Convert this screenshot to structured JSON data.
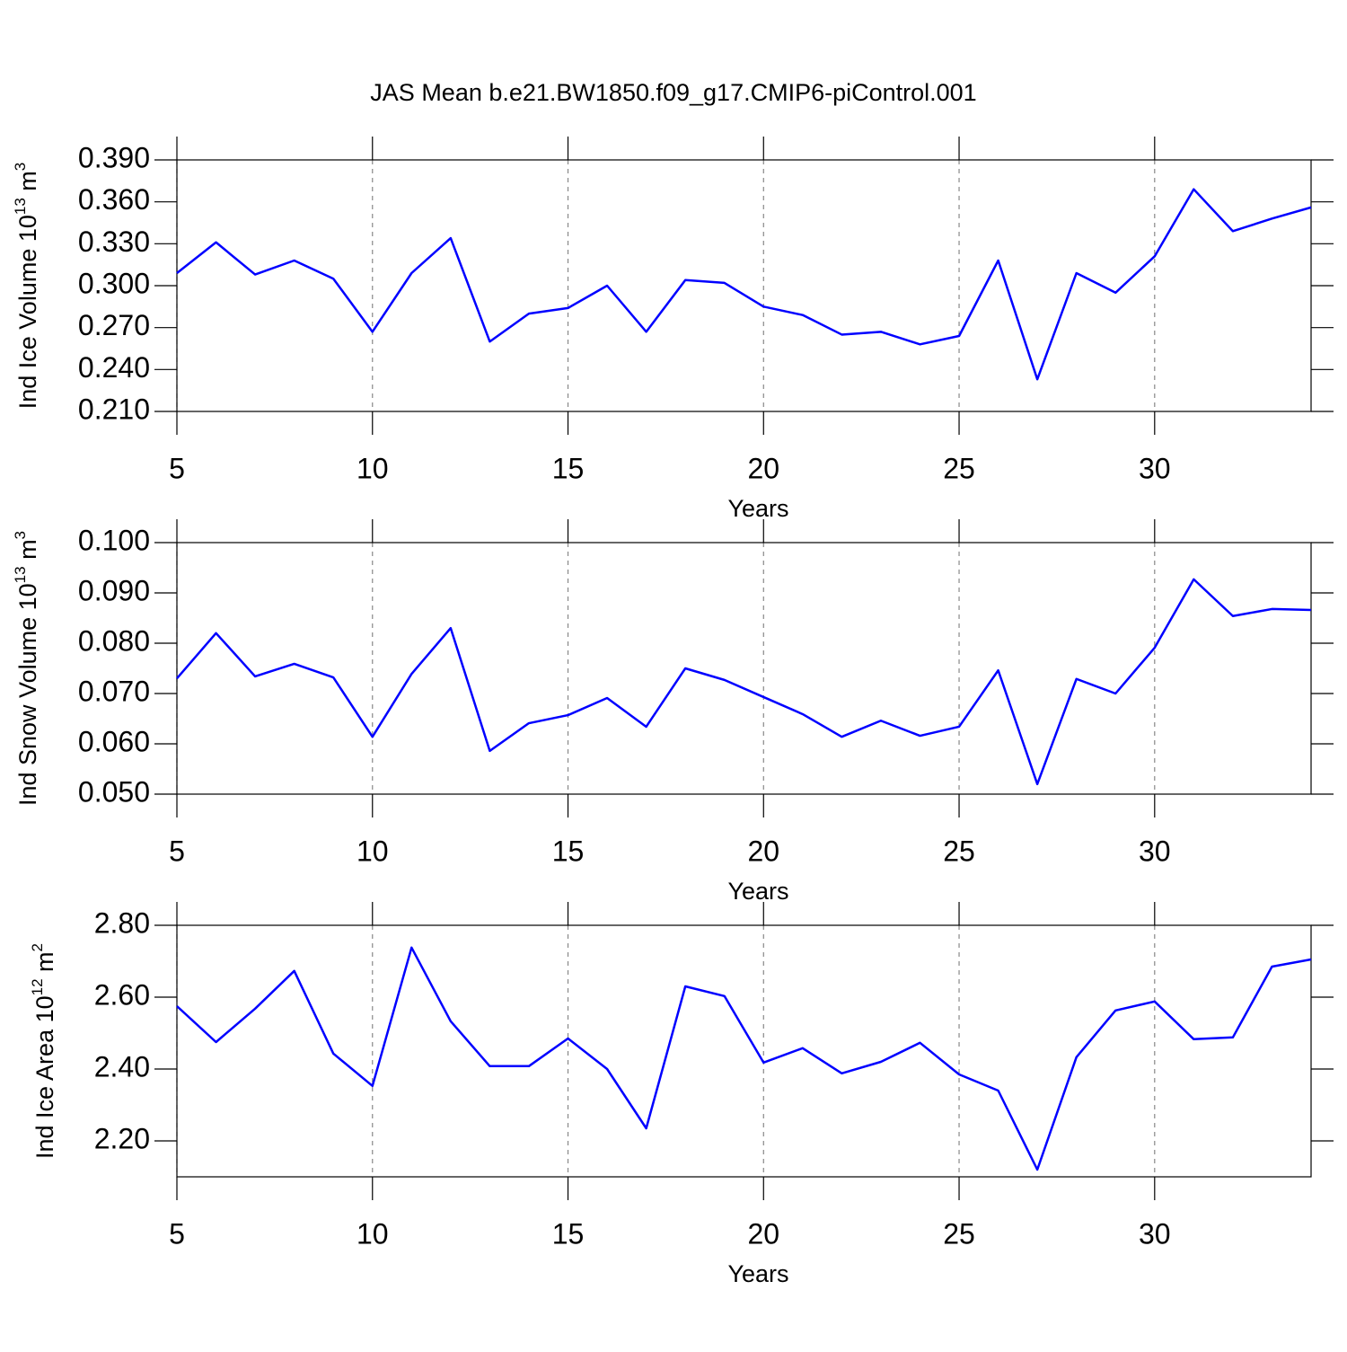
{
  "chart_data": [
    {
      "type": "line",
      "title": "JAS Mean b.e21.BW1850.f09_g17.CMIP6-piControl.001",
      "xlabel": "Years",
      "ylabel": [
        {
          "text": "Ind Ice Volume 10",
          "superscript": false
        },
        {
          "text": "13",
          "superscript": true
        },
        {
          "text": " m",
          "superscript": false
        },
        {
          "text": "3",
          "superscript": true
        }
      ],
      "x": [
        5,
        6,
        7,
        8,
        9,
        10,
        11,
        12,
        13,
        14,
        15,
        16,
        17,
        18,
        19,
        20,
        21,
        22,
        23,
        24,
        25,
        26,
        27,
        28,
        29,
        30,
        31,
        32,
        33,
        34
      ],
      "series": [
        {
          "color": "#0000ff",
          "values": [
            0.309,
            0.331,
            0.308,
            0.318,
            0.305,
            0.267,
            0.309,
            0.334,
            0.26,
            0.28,
            0.284,
            0.3,
            0.267,
            0.304,
            0.302,
            0.285,
            0.279,
            0.265,
            0.267,
            0.258,
            0.264,
            0.318,
            0.233,
            0.309,
            0.295,
            0.321,
            0.369,
            0.339,
            0.348,
            0.356
          ]
        }
      ],
      "xlim": [
        5,
        34
      ],
      "xticks": [
        5,
        10,
        15,
        20,
        25,
        30
      ],
      "ylim": [
        0.21,
        0.39
      ],
      "yticks": [
        {
          "value": 0.21,
          "label": "0.210"
        },
        {
          "value": 0.24,
          "label": "0.240"
        },
        {
          "value": 0.27,
          "label": "0.270"
        },
        {
          "value": 0.3,
          "label": "0.300"
        },
        {
          "value": 0.33,
          "label": "0.330"
        },
        {
          "value": 0.36,
          "label": "0.360"
        },
        {
          "value": 0.39,
          "label": "0.390"
        }
      ],
      "x_grid": true
    },
    {
      "type": "line",
      "xlabel": "Years",
      "ylabel": [
        {
          "text": "Ind Snow Volume 10",
          "superscript": false
        },
        {
          "text": "13",
          "superscript": true
        },
        {
          "text": " m",
          "superscript": false
        },
        {
          "text": "3",
          "superscript": true
        }
      ],
      "x": [
        5,
        6,
        7,
        8,
        9,
        10,
        11,
        12,
        13,
        14,
        15,
        16,
        17,
        18,
        19,
        20,
        21,
        22,
        23,
        24,
        25,
        26,
        27,
        28,
        29,
        30,
        31,
        32,
        33,
        34
      ],
      "series": [
        {
          "color": "#0000ff",
          "values": [
            0.073,
            0.082,
            0.0734,
            0.0759,
            0.0732,
            0.0614,
            0.0739,
            0.083,
            0.0586,
            0.0641,
            0.0657,
            0.0691,
            0.0634,
            0.075,
            0.0727,
            0.0693,
            0.0659,
            0.0614,
            0.0646,
            0.0616,
            0.0634,
            0.0746,
            0.052,
            0.0729,
            0.07,
            0.0791,
            0.0927,
            0.0854,
            0.0868,
            0.0866
          ]
        }
      ],
      "xlim": [
        5,
        34
      ],
      "xticks": [
        5,
        10,
        15,
        20,
        25,
        30
      ],
      "ylim": [
        0.05,
        0.1
      ],
      "yticks": [
        {
          "value": 0.05,
          "label": "0.050"
        },
        {
          "value": 0.06,
          "label": "0.060"
        },
        {
          "value": 0.07,
          "label": "0.070"
        },
        {
          "value": 0.08,
          "label": "0.080"
        },
        {
          "value": 0.09,
          "label": "0.090"
        },
        {
          "value": 0.1,
          "label": "0.100"
        }
      ],
      "x_grid": true
    },
    {
      "type": "line",
      "xlabel": "Years",
      "ylabel": [
        {
          "text": "Ind Ice Area 10",
          "superscript": false
        },
        {
          "text": "12",
          "superscript": true
        },
        {
          "text": " m",
          "superscript": false
        },
        {
          "text": "2",
          "superscript": true
        }
      ],
      "x": [
        5,
        6,
        7,
        8,
        9,
        10,
        11,
        12,
        13,
        14,
        15,
        16,
        17,
        18,
        19,
        20,
        21,
        22,
        23,
        24,
        25,
        26,
        27,
        28,
        29,
        30,
        31,
        32,
        33,
        34
      ],
      "series": [
        {
          "color": "#0000ff",
          "values": [
            2.575,
            2.475,
            2.568,
            2.673,
            2.443,
            2.353,
            2.738,
            2.533,
            2.408,
            2.408,
            2.485,
            2.4,
            2.235,
            2.63,
            2.603,
            2.418,
            2.458,
            2.388,
            2.42,
            2.473,
            2.385,
            2.34,
            2.12,
            2.433,
            2.563,
            2.588,
            2.483,
            2.488,
            2.685,
            2.705
          ]
        }
      ],
      "xlim": [
        5,
        34
      ],
      "xticks": [
        5,
        10,
        15,
        20,
        25,
        30
      ],
      "ylim": [
        2.1,
        2.8
      ],
      "yticks": [
        {
          "value": 2.2,
          "label": "2.20"
        },
        {
          "value": 2.4,
          "label": "2.40"
        },
        {
          "value": 2.6,
          "label": "2.60"
        },
        {
          "value": 2.8,
          "label": "2.80"
        }
      ],
      "x_grid": true
    }
  ]
}
